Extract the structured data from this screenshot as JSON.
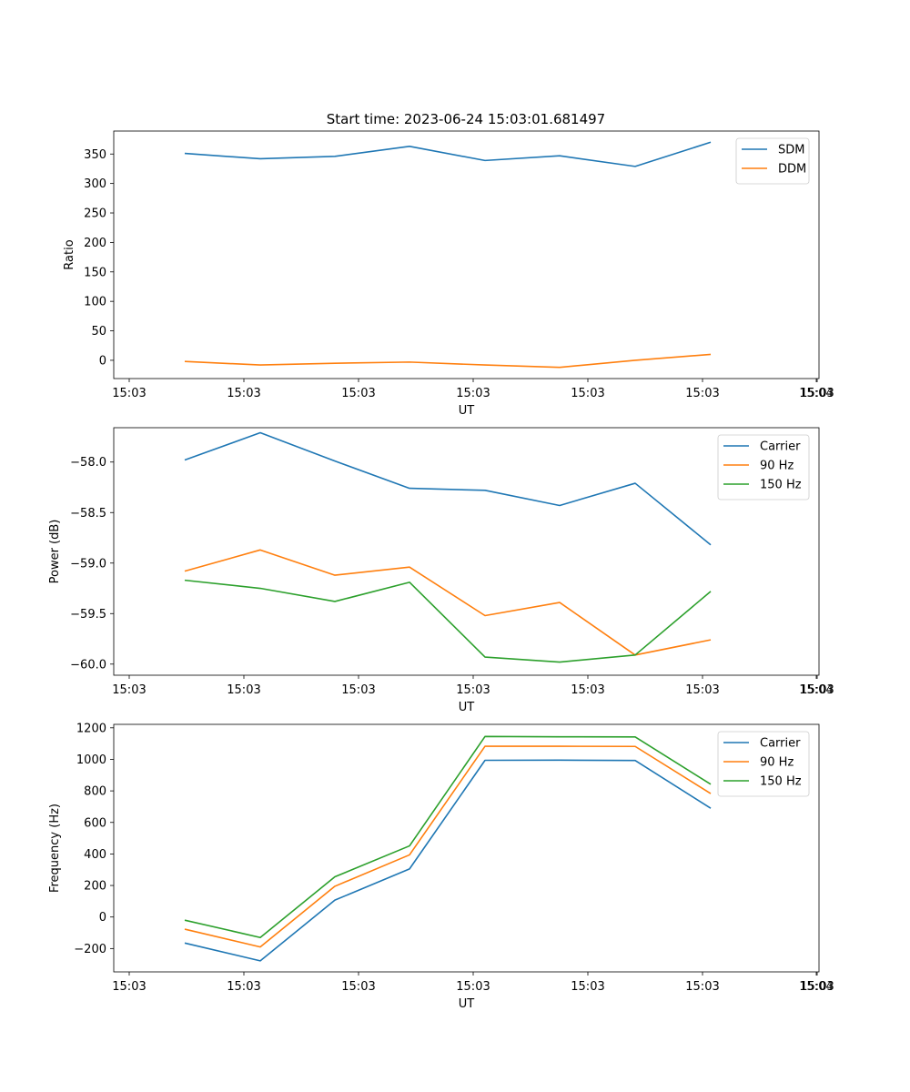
{
  "figure": {
    "title": "Start time: 2023-06-24 15:03:01.681497"
  },
  "chart_data": [
    {
      "type": "line",
      "xlabel": "UT",
      "ylabel": "Ratio",
      "x_tick_labels": [
        "15:03",
        "15:03",
        "15:03",
        "15:03",
        "15:03",
        "15:03",
        "15:03",
        "15:04"
      ],
      "ylim": [
        -31,
        389
      ],
      "y_ticks": [
        0,
        50,
        100,
        150,
        200,
        250,
        300,
        350
      ],
      "legend": "top-right",
      "series": [
        {
          "name": "SDM",
          "color": "#1f77b4",
          "values": [
            351,
            342,
            346,
            363,
            339,
            347,
            329,
            370
          ]
        },
        {
          "name": "DDM",
          "color": "#ff7f0e",
          "values": [
            -2,
            -8,
            -5,
            -3,
            -8,
            -12,
            0,
            10
          ]
        }
      ]
    },
    {
      "type": "line",
      "xlabel": "UT",
      "ylabel": "Power (dB)",
      "x_tick_labels": [
        "15:03",
        "15:03",
        "15:03",
        "15:03",
        "15:03",
        "15:03",
        "15:03",
        "15:04"
      ],
      "ylim": [
        -60.11,
        -57.66
      ],
      "y_ticks": [
        -60.0,
        -59.5,
        -59.0,
        -58.5,
        -58.0
      ],
      "y_tick_labels": [
        "−60.0",
        "−59.5",
        "−59.0",
        "−58.5",
        "−58.0"
      ],
      "legend": "top-right",
      "series": [
        {
          "name": "Carrier",
          "color": "#1f77b4",
          "values": [
            -57.98,
            -57.71,
            -57.99,
            -58.26,
            -58.28,
            -58.43,
            -58.21,
            -58.82
          ]
        },
        {
          "name": "90 Hz",
          "color": "#ff7f0e",
          "values": [
            -59.08,
            -58.87,
            -59.12,
            -59.04,
            -59.52,
            -59.39,
            -59.91,
            -59.76
          ]
        },
        {
          "name": "150 Hz",
          "color": "#2ca02c",
          "values": [
            -59.17,
            -59.25,
            -59.38,
            -59.19,
            -59.93,
            -59.98,
            -59.91,
            -59.28
          ]
        }
      ]
    },
    {
      "type": "line",
      "xlabel": "UT",
      "ylabel": "Frequency (Hz)",
      "x_tick_labels": [
        "15:03",
        "15:03",
        "15:03",
        "15:03",
        "15:03",
        "15:03",
        "15:03",
        "15:04"
      ],
      "ylim": [
        -348,
        1222
      ],
      "y_ticks": [
        -200,
        0,
        200,
        400,
        600,
        800,
        1000,
        1200
      ],
      "y_tick_labels": [
        "−200",
        "0",
        "200",
        "400",
        "600",
        "800",
        "1000",
        "1200"
      ],
      "legend": "top-right",
      "series": [
        {
          "name": "Carrier",
          "color": "#1f77b4",
          "values": [
            -165,
            -278,
            107,
            305,
            994,
            995,
            993,
            690
          ]
        },
        {
          "name": "90 Hz",
          "color": "#ff7f0e",
          "values": [
            -77,
            -190,
            195,
            394,
            1083,
            1083,
            1082,
            783
          ]
        },
        {
          "name": "150 Hz",
          "color": "#2ca02c",
          "values": [
            -20,
            -130,
            255,
            451,
            1145,
            1143,
            1142,
            842
          ]
        }
      ]
    }
  ]
}
